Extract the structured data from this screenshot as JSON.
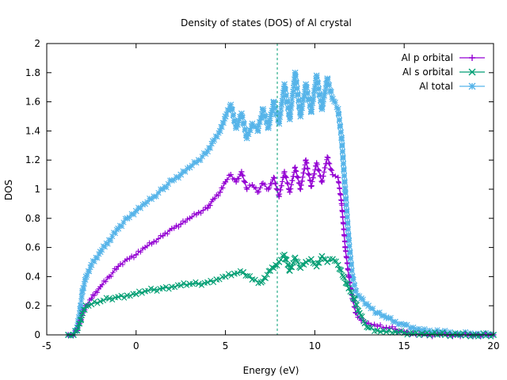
{
  "chart_data": {
    "type": "line",
    "title": "Density of states (DOS) of Al crystal",
    "xlabel": "Energy (eV)",
    "ylabel": "DOS",
    "xlim": [
      -5,
      20
    ],
    "ylim": [
      0,
      2
    ],
    "xticks": [
      "-5",
      "0",
      "5",
      "10",
      "15",
      "20"
    ],
    "yticks": [
      "0",
      "0.2",
      "0.4",
      "0.6",
      "0.8",
      "1",
      "1.2",
      "1.4",
      "1.6",
      "1.8",
      "2"
    ],
    "xtick_values": [
      -5,
      0,
      5,
      10,
      15,
      20
    ],
    "ytick_values": [
      0,
      0.2,
      0.4,
      0.6,
      0.8,
      1,
      1.2,
      1.4,
      1.6,
      1.8,
      2
    ],
    "grid": false,
    "legend_position": "top-right",
    "fermi_level": {
      "x": 7.9,
      "color": "#009e73",
      "style": "dashed"
    },
    "series": [
      {
        "name": "Al p orbital",
        "color": "#9400d3",
        "marker": "+",
        "x": [
          -3.8,
          -3.5,
          -3.3,
          -3.1,
          -3.0,
          -2.8,
          -2.5,
          -2.0,
          -1.5,
          -1.0,
          -0.5,
          0.0,
          0.5,
          1.0,
          1.5,
          2.0,
          2.5,
          3.0,
          3.5,
          4.0,
          4.3,
          4.7,
          5.0,
          5.3,
          5.6,
          5.9,
          6.2,
          6.5,
          6.8,
          7.1,
          7.4,
          7.7,
          8.0,
          8.3,
          8.6,
          8.9,
          9.2,
          9.5,
          9.8,
          10.1,
          10.4,
          10.7,
          11.0,
          11.3,
          11.5,
          11.7,
          11.9,
          12.1,
          12.3,
          12.6,
          13.0,
          13.5,
          14.0,
          14.5,
          15.0,
          15.5,
          16.0,
          17.0,
          18.0,
          19.0,
          20.0
        ],
        "values": [
          0.0,
          0.0,
          0.03,
          0.1,
          0.15,
          0.2,
          0.25,
          0.33,
          0.4,
          0.47,
          0.52,
          0.55,
          0.6,
          0.64,
          0.68,
          0.73,
          0.76,
          0.8,
          0.84,
          0.87,
          0.93,
          0.98,
          1.05,
          1.1,
          1.05,
          1.12,
          1.0,
          1.03,
          0.98,
          1.04,
          1.0,
          1.08,
          0.95,
          1.12,
          0.98,
          1.15,
          1.0,
          1.2,
          1.02,
          1.18,
          1.05,
          1.22,
          1.1,
          1.08,
          0.9,
          0.6,
          0.4,
          0.25,
          0.15,
          0.1,
          0.08,
          0.06,
          0.05,
          0.04,
          0.02,
          0.01,
          0.0,
          0.0,
          0.0,
          0.0,
          0.0
        ]
      },
      {
        "name": "Al s orbital",
        "color": "#009e73",
        "marker": "x",
        "x": [
          -3.8,
          -3.5,
          -3.3,
          -3.1,
          -3.0,
          -2.8,
          -2.5,
          -2.0,
          -1.5,
          -1.0,
          -0.5,
          0.0,
          0.5,
          1.0,
          1.5,
          2.0,
          2.5,
          3.0,
          3.5,
          4.0,
          4.5,
          5.0,
          5.5,
          6.0,
          6.5,
          7.0,
          7.5,
          8.0,
          8.3,
          8.6,
          8.9,
          9.2,
          9.5,
          9.8,
          10.1,
          10.4,
          10.7,
          11.0,
          11.3,
          11.6,
          11.9,
          12.2,
          12.5,
          12.8,
          13.0,
          13.5,
          14.0,
          14.5,
          15.0,
          15.5,
          16.0,
          17.0,
          18.0,
          19.0,
          20.0
        ],
        "values": [
          0.0,
          0.0,
          0.03,
          0.1,
          0.15,
          0.2,
          0.21,
          0.23,
          0.25,
          0.26,
          0.27,
          0.28,
          0.3,
          0.31,
          0.32,
          0.33,
          0.34,
          0.35,
          0.35,
          0.36,
          0.38,
          0.4,
          0.42,
          0.43,
          0.38,
          0.36,
          0.44,
          0.5,
          0.55,
          0.44,
          0.53,
          0.46,
          0.5,
          0.52,
          0.47,
          0.54,
          0.5,
          0.52,
          0.48,
          0.4,
          0.32,
          0.25,
          0.15,
          0.08,
          0.05,
          0.03,
          0.02,
          0.02,
          0.015,
          0.01,
          0.01,
          0.005,
          0.0,
          0.0,
          0.0
        ]
      },
      {
        "name": "Al total",
        "color": "#56b4e9",
        "marker": "*",
        "x": [
          -3.8,
          -3.5,
          -3.3,
          -3.1,
          -3.0,
          -2.8,
          -2.5,
          -2.0,
          -1.5,
          -1.0,
          -0.5,
          0.0,
          0.5,
          1.0,
          1.5,
          2.0,
          2.5,
          3.0,
          3.5,
          4.0,
          4.3,
          4.7,
          5.0,
          5.3,
          5.6,
          5.9,
          6.2,
          6.5,
          6.8,
          7.1,
          7.4,
          7.7,
          8.0,
          8.3,
          8.6,
          8.9,
          9.2,
          9.5,
          9.8,
          10.1,
          10.4,
          10.7,
          11.0,
          11.3,
          11.5,
          11.7,
          11.9,
          12.1,
          12.3,
          12.6,
          13.0,
          13.5,
          14.0,
          14.5,
          15.0,
          15.5,
          16.0,
          17.0,
          18.0,
          19.0,
          20.0
        ],
        "values": [
          0.0,
          0.0,
          0.05,
          0.2,
          0.3,
          0.4,
          0.48,
          0.57,
          0.65,
          0.73,
          0.8,
          0.85,
          0.9,
          0.95,
          1.0,
          1.06,
          1.1,
          1.15,
          1.2,
          1.26,
          1.33,
          1.4,
          1.5,
          1.58,
          1.42,
          1.52,
          1.35,
          1.45,
          1.4,
          1.55,
          1.42,
          1.6,
          1.45,
          1.72,
          1.48,
          1.8,
          1.5,
          1.72,
          1.53,
          1.78,
          1.55,
          1.76,
          1.62,
          1.55,
          1.35,
          1.0,
          0.65,
          0.4,
          0.3,
          0.25,
          0.2,
          0.15,
          0.12,
          0.09,
          0.07,
          0.05,
          0.03,
          0.02,
          0.01,
          0.005,
          0.0
        ]
      }
    ]
  }
}
